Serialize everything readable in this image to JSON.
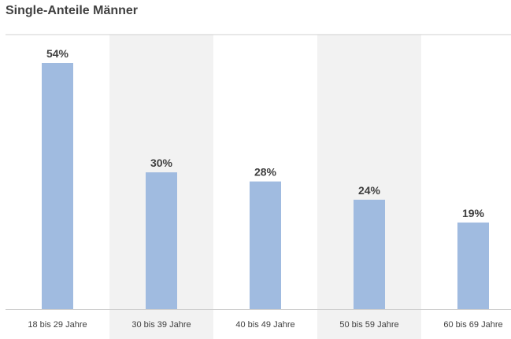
{
  "title": "Single-Anteile Männer",
  "colors": {
    "bar": "#a0bbe0",
    "band": "#f2f2f2",
    "text": "#404040",
    "axis": "#d0d0d0"
  },
  "chart_data": {
    "type": "bar",
    "title": "Single-Anteile Männer",
    "categories": [
      "18 bis 29 Jahre",
      "30 bis 39 Jahre",
      "40 bis 49 Jahre",
      "50 bis 59 Jahre",
      "60 bis 69 Jahre"
    ],
    "values": [
      54,
      30,
      28,
      24,
      19
    ],
    "value_labels": [
      "54%",
      "30%",
      "28%",
      "24%",
      "19%"
    ],
    "unit": "%",
    "ylim": [
      0,
      54
    ],
    "xlabel": "",
    "ylabel": "",
    "grid": false,
    "legend": "none",
    "alternating_bands": true
  }
}
